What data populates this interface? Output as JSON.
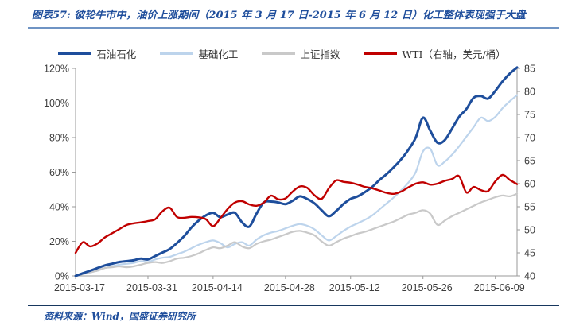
{
  "title": "图表57: 彼轮牛市中，油价上涨期间（2015 年 3 月 17 日-2015 年 6 月 12 日）化工整体表现强于大盘",
  "source": "资料来源：Wind，国盛证券研究所",
  "chart_data": {
    "type": "line",
    "title": "彼轮牛市中，油价上涨期间（2015年3月17日-2015年6月12日）化工整体表现强于大盘",
    "legend_position": "top",
    "grid": false,
    "left_axis": {
      "min": 0,
      "max": 120,
      "tick_values": [
        0,
        20,
        40,
        60,
        80,
        100,
        120
      ],
      "tick_labels": [
        "0%",
        "20%",
        "40%",
        "60%",
        "80%",
        "100%",
        "120%"
      ]
    },
    "right_axis": {
      "min": 40,
      "max": 85,
      "tick_values": [
        40,
        45,
        50,
        55,
        60,
        65,
        70,
        75,
        80,
        85
      ],
      "tick_labels": [
        "40",
        "45",
        "50",
        "55",
        "60",
        "65",
        "70",
        "75",
        "80",
        "85"
      ]
    },
    "x_tick_labels": [
      "2015-03-17",
      "2015-03-31",
      "2015-04-14",
      "2015-04-28",
      "2015-05-12",
      "2015-05-26",
      "2015-06-09"
    ],
    "dates": [
      "2015-03-17",
      "2015-03-18",
      "2015-03-19",
      "2015-03-20",
      "2015-03-23",
      "2015-03-24",
      "2015-03-25",
      "2015-03-26",
      "2015-03-27",
      "2015-03-30",
      "2015-03-31",
      "2015-04-01",
      "2015-04-02",
      "2015-04-03",
      "2015-04-07",
      "2015-04-08",
      "2015-04-09",
      "2015-04-10",
      "2015-04-13",
      "2015-04-14",
      "2015-04-15",
      "2015-04-16",
      "2015-04-17",
      "2015-04-20",
      "2015-04-21",
      "2015-04-22",
      "2015-04-23",
      "2015-04-24",
      "2015-04-27",
      "2015-04-28",
      "2015-04-29",
      "2015-04-30",
      "2015-05-04",
      "2015-05-05",
      "2015-05-06",
      "2015-05-07",
      "2015-05-08",
      "2015-05-11",
      "2015-05-12",
      "2015-05-13",
      "2015-05-14",
      "2015-05-15",
      "2015-05-18",
      "2015-05-19",
      "2015-05-20",
      "2015-05-21",
      "2015-05-22",
      "2015-05-25",
      "2015-05-26",
      "2015-05-27",
      "2015-05-28",
      "2015-05-29",
      "2015-06-01",
      "2015-06-02",
      "2015-06-03",
      "2015-06-04",
      "2015-06-05",
      "2015-06-08",
      "2015-06-09",
      "2015-06-10",
      "2015-06-11",
      "2015-06-12"
    ],
    "series": [
      {
        "name": "石油石化",
        "axis": "left",
        "color": "#1E4E9C",
        "unit": "%",
        "values": [
          0,
          1.5,
          3,
          4.5,
          6,
          7,
          8,
          8.5,
          9,
          10,
          9.5,
          11.5,
          13.5,
          15.5,
          19,
          23,
          28,
          32,
          35,
          36.5,
          34,
          35.5,
          36.5,
          31,
          28.5,
          36,
          42.5,
          43,
          42.5,
          41.5,
          43.5,
          46,
          44.5,
          42,
          38,
          34.5,
          37.5,
          41.5,
          44.5,
          46,
          48.5,
          51.5,
          55.5,
          59,
          63,
          67.5,
          73,
          80,
          91.5,
          84,
          77,
          78.5,
          85,
          92,
          96.5,
          103,
          104,
          102.5,
          107,
          112.5,
          117,
          120.5
        ]
      },
      {
        "name": "基础化工",
        "axis": "left",
        "color": "#BDD4EC",
        "unit": "%",
        "values": [
          0,
          1,
          2,
          3,
          4.5,
          5.5,
          6.5,
          7,
          7.5,
          8.5,
          8,
          9.5,
          10.5,
          11,
          12.5,
          14,
          16,
          18,
          19.5,
          20.5,
          19,
          16.5,
          18.5,
          19.5,
          17.5,
          21,
          23.5,
          25,
          26,
          27.5,
          29,
          30,
          29,
          27,
          23.5,
          20.5,
          23,
          26,
          28.5,
          30.5,
          32.5,
          35,
          38.5,
          42,
          45.5,
          49.5,
          54,
          60,
          72,
          73.5,
          64,
          66,
          70,
          75,
          80.5,
          86,
          91.5,
          89.5,
          92,
          97,
          101,
          104.5
        ]
      },
      {
        "name": "上证指数",
        "axis": "left",
        "color": "#C9C9C9",
        "unit": "%",
        "values": [
          0,
          1,
          2,
          3,
          4.5,
          5,
          5.5,
          5,
          5.5,
          6.5,
          7.5,
          8,
          7.5,
          8.5,
          10,
          10.5,
          11.5,
          13,
          15,
          16.5,
          16,
          17.5,
          19.5,
          17,
          16,
          18.5,
          20,
          21,
          22.5,
          24,
          25.5,
          26,
          25,
          23.5,
          20,
          17.5,
          19.5,
          21.5,
          23,
          24.5,
          25.5,
          27,
          28.5,
          30,
          31.5,
          33.5,
          35.5,
          36.5,
          38,
          36,
          29.5,
          32,
          34.5,
          36.5,
          38.5,
          40.5,
          42.5,
          44,
          45.5,
          46.5,
          46,
          47.5
        ]
      },
      {
        "name": "WTI（右轴，美元/桶）",
        "axis": "right",
        "color": "#C00000",
        "unit": "美元/桶",
        "values": [
          45,
          47.3,
          46.4,
          47,
          48.3,
          49.2,
          50.1,
          51,
          51.4,
          51.6,
          51.9,
          52.3,
          54,
          54.8,
          52.8,
          52.6,
          52.8,
          52.7,
          52.3,
          50.8,
          52.5,
          54.5,
          55.9,
          56.2,
          55.5,
          55.2,
          55.9,
          57.4,
          56.6,
          56.8,
          58.3,
          59.4,
          59.1,
          57.5,
          56.7,
          59,
          60.7,
          60.4,
          60.2,
          59.8,
          59.3,
          59,
          58.5,
          58,
          57.8,
          58.3,
          59.2,
          60,
          60.3,
          59.8,
          60,
          60.6,
          61,
          61.6,
          58.1,
          59.3,
          58.6,
          58.4,
          60.5,
          61.9,
          60.8,
          59.9
        ]
      }
    ]
  }
}
